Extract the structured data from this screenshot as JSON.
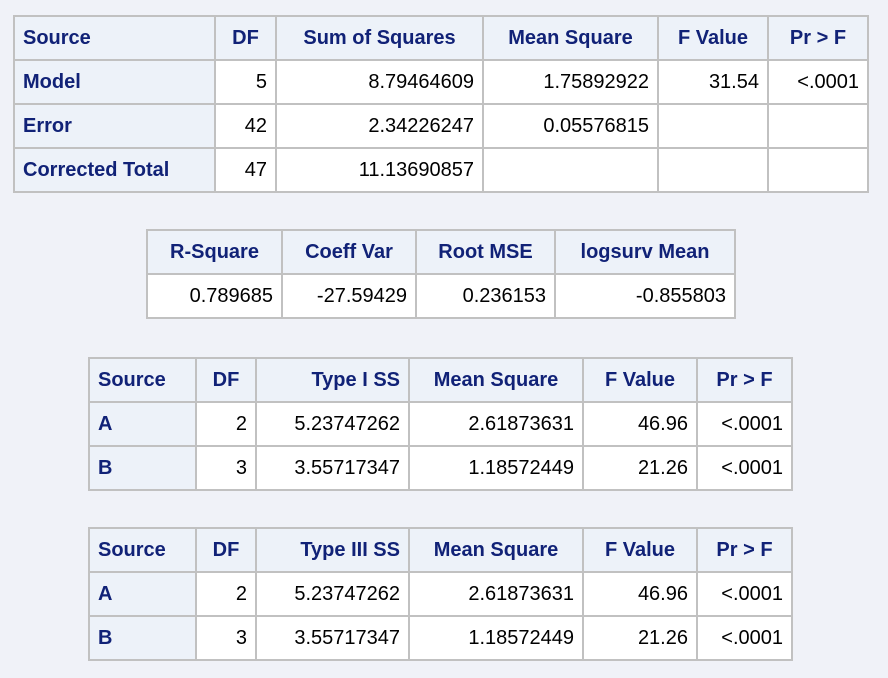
{
  "anova": {
    "headers": [
      "Source",
      "DF",
      "Sum of Squares",
      "Mean Square",
      "F Value",
      "Pr > F"
    ],
    "rows": [
      {
        "source": "Model",
        "df": "5",
        "ss": "8.79464609",
        "ms": "1.75892922",
        "f": "31.54",
        "p": "<.0001"
      },
      {
        "source": "Error",
        "df": "42",
        "ss": "2.34226247",
        "ms": "0.05576815",
        "f": "",
        "p": ""
      },
      {
        "source": "Corrected Total",
        "df": "47",
        "ss": "11.13690857",
        "ms": "",
        "f": "",
        "p": ""
      }
    ]
  },
  "fit": {
    "headers": [
      "R-Square",
      "Coeff Var",
      "Root MSE",
      "logsurv Mean"
    ],
    "values": [
      "0.789685",
      "-27.59429",
      "0.236153",
      "-0.855803"
    ]
  },
  "type1": {
    "headers": [
      "Source",
      "DF",
      "Type I SS",
      "Mean Square",
      "F Value",
      "Pr > F"
    ],
    "rows": [
      {
        "source": "A",
        "df": "2",
        "ss": "5.23747262",
        "ms": "2.61873631",
        "f": "46.96",
        "p": "<.0001"
      },
      {
        "source": "B",
        "df": "3",
        "ss": "3.55717347",
        "ms": "1.18572449",
        "f": "21.26",
        "p": "<.0001"
      }
    ]
  },
  "type3": {
    "headers": [
      "Source",
      "DF",
      "Type III SS",
      "Mean Square",
      "F Value",
      "Pr > F"
    ],
    "rows": [
      {
        "source": "A",
        "df": "2",
        "ss": "5.23747262",
        "ms": "2.61873631",
        "f": "46.96",
        "p": "<.0001"
      },
      {
        "source": "B",
        "df": "3",
        "ss": "3.55717347",
        "ms": "1.18572449",
        "f": "21.26",
        "p": "<.0001"
      }
    ]
  },
  "colors": {
    "header_bg": "#edf2f9",
    "header_text": "#112277",
    "border": "#c1c1c1",
    "page_bg": "#f0f2f8"
  }
}
